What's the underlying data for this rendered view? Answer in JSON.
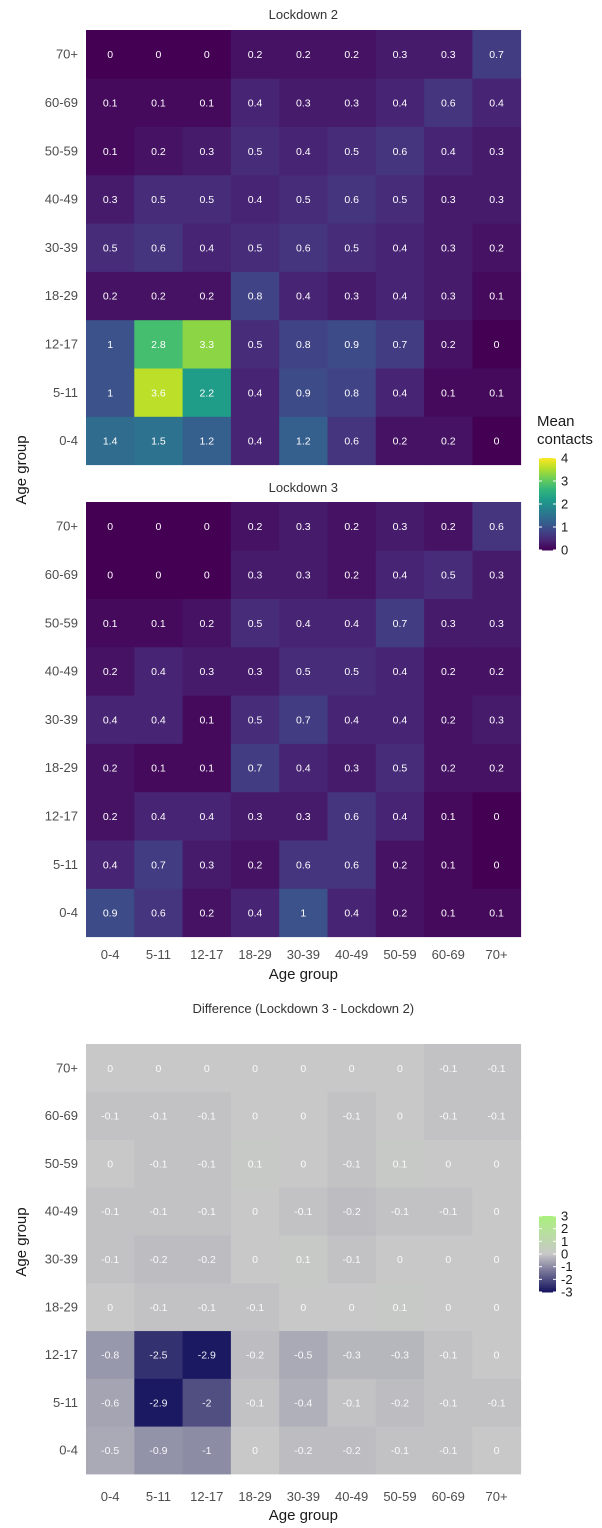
{
  "chart_data": [
    {
      "type": "heatmap",
      "title": "Lockdown 2",
      "x": [
        "0-4",
        "5-11",
        "12-17",
        "18-29",
        "30-39",
        "40-49",
        "50-59",
        "60-69",
        "70+"
      ],
      "y": [
        "0-4",
        "5-11",
        "12-17",
        "18-29",
        "30-39",
        "40-49",
        "50-59",
        "60-69",
        "70+"
      ],
      "values": [
        [
          1.4,
          1.5,
          1.2,
          0.4,
          1.2,
          0.6,
          0.2,
          0.2,
          0
        ],
        [
          1,
          3.6,
          2.2,
          0.4,
          0.9,
          0.8,
          0.4,
          0.1,
          0.1
        ],
        [
          1,
          2.8,
          3.3,
          0.5,
          0.8,
          0.9,
          0.7,
          0.2,
          0
        ],
        [
          0.2,
          0.2,
          0.2,
          0.8,
          0.4,
          0.3,
          0.4,
          0.3,
          0.1
        ],
        [
          0.5,
          0.6,
          0.4,
          0.5,
          0.6,
          0.5,
          0.4,
          0.3,
          0.2
        ],
        [
          0.3,
          0.5,
          0.5,
          0.4,
          0.5,
          0.6,
          0.5,
          0.3,
          0.3
        ],
        [
          0.1,
          0.2,
          0.3,
          0.5,
          0.4,
          0.5,
          0.6,
          0.4,
          0.3
        ],
        [
          0.1,
          0.1,
          0.1,
          0.4,
          0.3,
          0.3,
          0.4,
          0.6,
          0.4
        ],
        [
          0,
          0,
          0,
          0.2,
          0.2,
          0.2,
          0.3,
          0.3,
          0.7
        ]
      ],
      "xlabel": "",
      "ylabel": "Age group",
      "color_scale": "viridis",
      "limits": [
        0,
        4
      ]
    },
    {
      "type": "heatmap",
      "title": "Lockdown 3",
      "x": [
        "0-4",
        "5-11",
        "12-17",
        "18-29",
        "30-39",
        "40-49",
        "50-59",
        "60-69",
        "70+"
      ],
      "y": [
        "0-4",
        "5-11",
        "12-17",
        "18-29",
        "30-39",
        "40-49",
        "50-59",
        "60-69",
        "70+"
      ],
      "values": [
        [
          0.9,
          0.6,
          0.2,
          0.4,
          1,
          0.4,
          0.2,
          0.1,
          0.1
        ],
        [
          0.4,
          0.7,
          0.3,
          0.2,
          0.6,
          0.6,
          0.2,
          0.1,
          0
        ],
        [
          0.2,
          0.4,
          0.4,
          0.3,
          0.3,
          0.6,
          0.4,
          0.1,
          0
        ],
        [
          0.2,
          0.1,
          0.1,
          0.7,
          0.4,
          0.3,
          0.5,
          0.2,
          0.2
        ],
        [
          0.4,
          0.4,
          0.1,
          0.5,
          0.7,
          0.4,
          0.4,
          0.2,
          0.3
        ],
        [
          0.2,
          0.4,
          0.3,
          0.3,
          0.5,
          0.5,
          0.4,
          0.2,
          0.2
        ],
        [
          0.1,
          0.1,
          0.2,
          0.5,
          0.4,
          0.4,
          0.7,
          0.3,
          0.3
        ],
        [
          0,
          0,
          0,
          0.3,
          0.3,
          0.2,
          0.4,
          0.5,
          0.3
        ],
        [
          0,
          0,
          0,
          0.2,
          0.3,
          0.2,
          0.3,
          0.2,
          0.6
        ]
      ],
      "xlabel": "Age group",
      "ylabel": "Age group",
      "color_scale": "viridis",
      "limits": [
        0,
        4
      ]
    },
    {
      "type": "heatmap",
      "title": "Difference (Lockdown 3 - Lockdown 2)",
      "x": [
        "0-4",
        "5-11",
        "12-17",
        "18-29",
        "30-39",
        "40-49",
        "50-59",
        "60-69",
        "70+"
      ],
      "y": [
        "0-4",
        "5-11",
        "12-17",
        "18-29",
        "30-39",
        "40-49",
        "50-59",
        "60-69",
        "70+"
      ],
      "values": [
        [
          -0.5,
          -0.9,
          -1,
          0,
          -0.2,
          -0.2,
          -0.1,
          -0.1,
          0
        ],
        [
          -0.6,
          -2.9,
          -2,
          -0.1,
          -0.4,
          -0.1,
          -0.2,
          -0.1,
          -0.1
        ],
        [
          -0.8,
          -2.5,
          -2.9,
          -0.2,
          -0.5,
          -0.3,
          -0.3,
          -0.1,
          0
        ],
        [
          0,
          -0.1,
          -0.1,
          -0.1,
          0,
          0,
          0.1,
          0,
          0
        ],
        [
          -0.1,
          -0.2,
          -0.2,
          0,
          0.1,
          -0.1,
          0,
          0,
          0
        ],
        [
          -0.1,
          -0.1,
          -0.1,
          0,
          -0.1,
          -0.2,
          -0.1,
          -0.1,
          0
        ],
        [
          0,
          -0.1,
          -0.1,
          0.1,
          0,
          -0.1,
          0.1,
          0,
          0
        ],
        [
          -0.1,
          -0.1,
          -0.1,
          0,
          0,
          -0.1,
          0,
          -0.1,
          -0.1
        ],
        [
          0,
          0,
          0,
          0,
          0,
          0,
          0,
          -0.1,
          -0.1
        ]
      ],
      "xlabel": "Age group",
      "ylabel": "Age group",
      "color_scale": "diverging-navy-grey-green",
      "limits": [
        -3,
        3
      ]
    }
  ],
  "legends": [
    {
      "title_lines": [
        "Mean",
        "contacts"
      ],
      "ticks": [
        "4",
        "3",
        "2",
        "1",
        "0"
      ],
      "min": 0,
      "max": 4
    },
    {
      "title_lines": [],
      "ticks": [
        "3",
        "2",
        "1",
        "0",
        "-1",
        "-2",
        "-3"
      ],
      "min": -3,
      "max": 3
    }
  ],
  "colors": {
    "viridis": [
      "#440154",
      "#482878",
      "#3e4a89",
      "#31688e",
      "#26828e",
      "#1f9e89",
      "#35b779",
      "#6ece58",
      "#b5de2b",
      "#fde725"
    ],
    "diverging": {
      "low": "#15135e",
      "mid": "#c8c8c8",
      "high": "#aaf07d"
    },
    "background": "#ffffff",
    "label_light": "#ffffff"
  }
}
